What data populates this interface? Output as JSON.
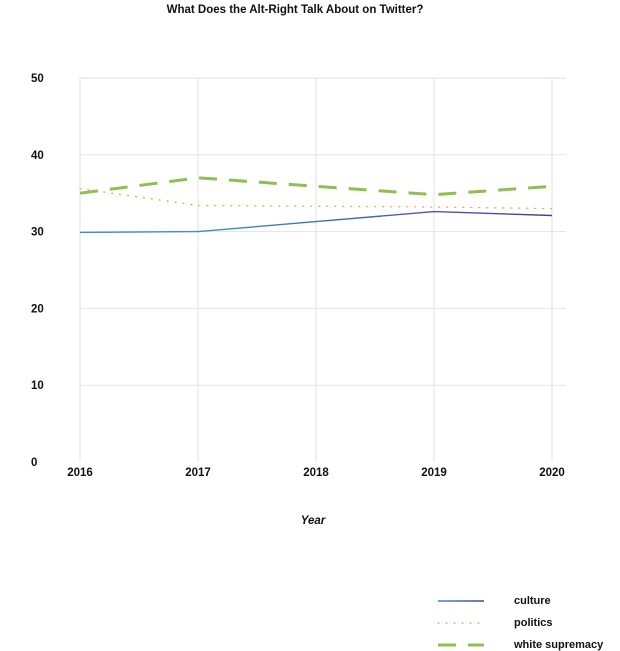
{
  "chart_data": {
    "type": "line",
    "title": "What Does the Alt-Right Talk About on Twitter?",
    "xlabel": "Year",
    "ylabel": "",
    "x": [
      "2016",
      "2017",
      "2018",
      "2019",
      "2020"
    ],
    "ylim": [
      0,
      50
    ],
    "yticks": [
      "0",
      "10",
      "20",
      "30",
      "40",
      "50"
    ],
    "grid": true,
    "legend_position": "bottom-right",
    "series": [
      {
        "name": "culture",
        "values": [
          29.9,
          30.0,
          31.3,
          32.6,
          32.1
        ],
        "color": "#3b8fc4",
        "end_color": "#4b3f8f",
        "style": "solid"
      },
      {
        "name": "politics",
        "values": [
          35.6,
          33.4,
          33.3,
          33.2,
          33.0
        ],
        "color": "#f4a24a",
        "style": "dotted"
      },
      {
        "name": "white supremacy",
        "values": [
          35.0,
          37.0,
          35.9,
          34.8,
          35.9
        ],
        "color": "#8cc152",
        "style": "dashed"
      }
    ]
  }
}
